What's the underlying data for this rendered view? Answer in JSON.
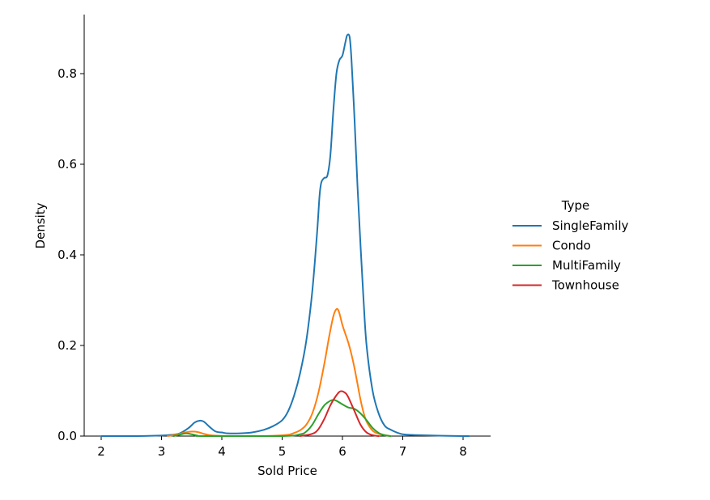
{
  "chart_data": {
    "type": "line",
    "subtype": "kde",
    "xlabel": "Sold Price",
    "ylabel": "Density",
    "xlim": [
      1.78,
      8.45
    ],
    "ylim": [
      0,
      0.93
    ],
    "xticks": [
      2,
      3,
      4,
      5,
      6,
      7,
      8
    ],
    "yticks": [
      0.0,
      0.2,
      0.4,
      0.6,
      0.8
    ],
    "ytick_labels": [
      "0.0",
      "0.2",
      "0.4",
      "0.6",
      "0.8"
    ],
    "grid": false,
    "legend": {
      "title": "Type",
      "placement": "right"
    },
    "series": [
      {
        "name": "SingleFamily",
        "color": "#1f77b4",
        "points": [
          [
            2.0,
            0
          ],
          [
            2.6,
            0
          ],
          [
            2.9,
            0.001
          ],
          [
            3.1,
            0.002
          ],
          [
            3.3,
            0.006
          ],
          [
            3.45,
            0.018
          ],
          [
            3.55,
            0.03
          ],
          [
            3.63,
            0.034
          ],
          [
            3.7,
            0.032
          ],
          [
            3.8,
            0.02
          ],
          [
            3.9,
            0.01
          ],
          [
            4.0,
            0.008
          ],
          [
            4.1,
            0.006
          ],
          [
            4.3,
            0.006
          ],
          [
            4.5,
            0.008
          ],
          [
            4.7,
            0.014
          ],
          [
            4.85,
            0.022
          ],
          [
            5.0,
            0.035
          ],
          [
            5.1,
            0.055
          ],
          [
            5.2,
            0.09
          ],
          [
            5.3,
            0.14
          ],
          [
            5.4,
            0.21
          ],
          [
            5.5,
            0.32
          ],
          [
            5.58,
            0.45
          ],
          [
            5.62,
            0.53
          ],
          [
            5.65,
            0.56
          ],
          [
            5.7,
            0.57
          ],
          [
            5.75,
            0.575
          ],
          [
            5.8,
            0.62
          ],
          [
            5.85,
            0.72
          ],
          [
            5.9,
            0.8
          ],
          [
            5.95,
            0.83
          ],
          [
            6.0,
            0.84
          ],
          [
            6.05,
            0.87
          ],
          [
            6.08,
            0.885
          ],
          [
            6.12,
            0.88
          ],
          [
            6.15,
            0.83
          ],
          [
            6.2,
            0.7
          ],
          [
            6.25,
            0.55
          ],
          [
            6.3,
            0.42
          ],
          [
            6.35,
            0.3
          ],
          [
            6.4,
            0.2
          ],
          [
            6.5,
            0.1
          ],
          [
            6.6,
            0.05
          ],
          [
            6.7,
            0.023
          ],
          [
            6.8,
            0.014
          ],
          [
            6.9,
            0.008
          ],
          [
            7.0,
            0.004
          ],
          [
            7.1,
            0.003
          ],
          [
            7.3,
            0.002
          ],
          [
            7.6,
            0.001
          ],
          [
            8.0,
            0
          ],
          [
            8.1,
            0
          ]
        ]
      },
      {
        "name": "Condo",
        "color": "#ff7f0e",
        "points": [
          [
            3.1,
            0
          ],
          [
            3.2,
            0.002
          ],
          [
            3.3,
            0.005
          ],
          [
            3.4,
            0.008
          ],
          [
            3.5,
            0.01
          ],
          [
            3.6,
            0.009
          ],
          [
            3.7,
            0.005
          ],
          [
            3.8,
            0.002
          ],
          [
            3.9,
            0.001
          ],
          [
            4.2,
            0
          ],
          [
            4.6,
            0
          ],
          [
            4.9,
            0.001
          ],
          [
            5.1,
            0.003
          ],
          [
            5.2,
            0.007
          ],
          [
            5.3,
            0.013
          ],
          [
            5.4,
            0.025
          ],
          [
            5.5,
            0.05
          ],
          [
            5.6,
            0.095
          ],
          [
            5.7,
            0.16
          ],
          [
            5.78,
            0.22
          ],
          [
            5.85,
            0.265
          ],
          [
            5.9,
            0.28
          ],
          [
            5.94,
            0.275
          ],
          [
            6.0,
            0.245
          ],
          [
            6.05,
            0.225
          ],
          [
            6.1,
            0.205
          ],
          [
            6.15,
            0.18
          ],
          [
            6.2,
            0.15
          ],
          [
            6.25,
            0.115
          ],
          [
            6.3,
            0.08
          ],
          [
            6.35,
            0.052
          ],
          [
            6.4,
            0.032
          ],
          [
            6.5,
            0.012
          ],
          [
            6.6,
            0.005
          ],
          [
            6.7,
            0.002
          ],
          [
            6.8,
            0
          ]
        ]
      },
      {
        "name": "MultiFamily",
        "color": "#2ca02c",
        "points": [
          [
            3.2,
            0
          ],
          [
            3.3,
            0.003
          ],
          [
            3.4,
            0.006
          ],
          [
            3.5,
            0.004
          ],
          [
            3.6,
            0.001
          ],
          [
            3.7,
            0
          ],
          [
            5.0,
            0
          ],
          [
            5.3,
            0.004
          ],
          [
            5.4,
            0.01
          ],
          [
            5.5,
            0.025
          ],
          [
            5.6,
            0.048
          ],
          [
            5.7,
            0.068
          ],
          [
            5.8,
            0.078
          ],
          [
            5.85,
            0.08
          ],
          [
            5.9,
            0.078
          ],
          [
            6.0,
            0.07
          ],
          [
            6.1,
            0.063
          ],
          [
            6.2,
            0.06
          ],
          [
            6.3,
            0.05
          ],
          [
            6.4,
            0.035
          ],
          [
            6.5,
            0.018
          ],
          [
            6.6,
            0.007
          ],
          [
            6.7,
            0.002
          ],
          [
            6.8,
            0
          ]
        ]
      },
      {
        "name": "Townhouse",
        "color": "#d62728",
        "points": [
          [
            5.3,
            0
          ],
          [
            5.5,
            0.005
          ],
          [
            5.6,
            0.015
          ],
          [
            5.7,
            0.038
          ],
          [
            5.8,
            0.068
          ],
          [
            5.9,
            0.09
          ],
          [
            5.97,
            0.099
          ],
          [
            6.05,
            0.095
          ],
          [
            6.1,
            0.085
          ],
          [
            6.2,
            0.055
          ],
          [
            6.3,
            0.025
          ],
          [
            6.4,
            0.008
          ],
          [
            6.5,
            0.002
          ],
          [
            6.6,
            0
          ]
        ]
      }
    ]
  }
}
